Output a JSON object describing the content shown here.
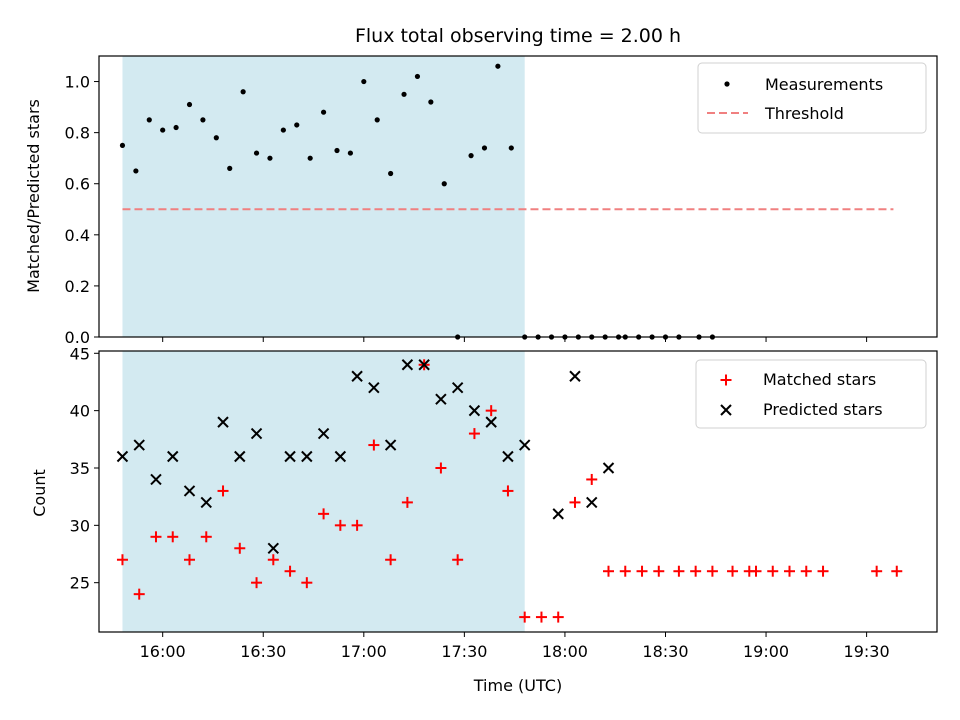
{
  "colors": {
    "shade": "#d3eaf1",
    "threshold": "#f08080",
    "matched": "#ff0000",
    "predicted": "#000000",
    "points": "#000000"
  },
  "chart_data": [
    {
      "type": "scatter",
      "title": "Flux total observing time = 2.00 h",
      "ylabel": "Matched/Predicted stars",
      "ylim": [
        0,
        1.1
      ],
      "yticks": [
        "0.0",
        "0.2",
        "0.4",
        "0.6",
        "0.8",
        "1.0"
      ],
      "shaded_interval": [
        "15:48",
        "17:48"
      ],
      "legend": {
        "placement": "top-right",
        "entries": [
          "Measurements",
          "Threshold"
        ]
      },
      "threshold": {
        "name": "Threshold",
        "value": 0.5,
        "x_range": [
          "15:48",
          "19:38"
        ]
      },
      "series": [
        {
          "name": "Measurements",
          "points": [
            [
              "15:48",
              0.75
            ],
            [
              "15:52",
              0.65
            ],
            [
              "15:56",
              0.85
            ],
            [
              "16:00",
              0.81
            ],
            [
              "16:04",
              0.82
            ],
            [
              "16:08",
              0.91
            ],
            [
              "16:12",
              0.85
            ],
            [
              "16:16",
              0.78
            ],
            [
              "16:20",
              0.66
            ],
            [
              "16:24",
              0.96
            ],
            [
              "16:28",
              0.72
            ],
            [
              "16:32",
              0.7
            ],
            [
              "16:36",
              0.81
            ],
            [
              "16:40",
              0.83
            ],
            [
              "16:44",
              0.7
            ],
            [
              "16:48",
              0.88
            ],
            [
              "16:52",
              0.73
            ],
            [
              "16:56",
              0.72
            ],
            [
              "17:00",
              1.0
            ],
            [
              "17:04",
              0.85
            ],
            [
              "17:08",
              0.64
            ],
            [
              "17:12",
              0.95
            ],
            [
              "17:16",
              1.02
            ],
            [
              "17:20",
              0.92
            ],
            [
              "17:24",
              0.6
            ],
            [
              "17:28",
              0.0
            ],
            [
              "17:32",
              0.71
            ],
            [
              "17:36",
              0.74
            ],
            [
              "17:40",
              1.06
            ],
            [
              "17:44",
              0.74
            ],
            [
              "17:48",
              0.0
            ],
            [
              "17:52",
              0.0
            ],
            [
              "17:56",
              0.0
            ],
            [
              "18:00",
              0.0
            ],
            [
              "18:04",
              0.0
            ],
            [
              "18:08",
              0.0
            ],
            [
              "18:12",
              0.0
            ],
            [
              "18:16",
              0.0
            ],
            [
              "18:18",
              0.0
            ],
            [
              "18:22",
              0.0
            ],
            [
              "18:26",
              0.0
            ],
            [
              "18:30",
              0.0
            ],
            [
              "18:34",
              0.0
            ],
            [
              "18:40",
              0.0
            ],
            [
              "18:44",
              0.0
            ]
          ]
        }
      ]
    },
    {
      "type": "scatter",
      "xlabel": "Time (UTC)",
      "ylabel": "Count",
      "ylim": [
        20.7,
        45.2
      ],
      "yticks": [
        "25",
        "30",
        "35",
        "40",
        "45"
      ],
      "xlim": [
        "15:41",
        "19:51"
      ],
      "xticks": [
        "16:00",
        "16:30",
        "17:00",
        "17:30",
        "18:00",
        "18:30",
        "19:00",
        "19:30"
      ],
      "shaded_interval": [
        "15:48",
        "17:48"
      ],
      "legend": {
        "placement": "top-right",
        "entries": [
          "Matched stars",
          "Predicted stars"
        ]
      },
      "series": [
        {
          "name": "Matched stars",
          "points": [
            [
              "15:48",
              27
            ],
            [
              "15:53",
              24
            ],
            [
              "15:58",
              29
            ],
            [
              "16:03",
              29
            ],
            [
              "16:08",
              27
            ],
            [
              "16:13",
              29
            ],
            [
              "16:18",
              33
            ],
            [
              "16:23",
              28
            ],
            [
              "16:28",
              25
            ],
            [
              "16:33",
              27
            ],
            [
              "16:38",
              26
            ],
            [
              "16:43",
              25
            ],
            [
              "16:48",
              31
            ],
            [
              "16:53",
              30
            ],
            [
              "16:58",
              30
            ],
            [
              "17:03",
              37
            ],
            [
              "17:08",
              27
            ],
            [
              "17:13",
              32
            ],
            [
              "17:18",
              44
            ],
            [
              "17:23",
              35
            ],
            [
              "17:28",
              27
            ],
            [
              "17:33",
              38
            ],
            [
              "17:38",
              40
            ],
            [
              "17:43",
              33
            ],
            [
              "17:48",
              22
            ],
            [
              "17:53",
              22
            ],
            [
              "17:58",
              22
            ],
            [
              "18:03",
              32
            ],
            [
              "18:08",
              34
            ],
            [
              "18:13",
              26
            ],
            [
              "18:18",
              26
            ],
            [
              "18:23",
              26
            ],
            [
              "18:28",
              26
            ],
            [
              "18:34",
              26
            ],
            [
              "18:39",
              26
            ],
            [
              "18:44",
              26
            ],
            [
              "18:50",
              26
            ],
            [
              "18:55",
              26
            ],
            [
              "18:57",
              26
            ],
            [
              "19:02",
              26
            ],
            [
              "19:07",
              26
            ],
            [
              "19:12",
              26
            ],
            [
              "19:17",
              26
            ],
            [
              "19:33",
              26
            ],
            [
              "19:39",
              26
            ]
          ]
        },
        {
          "name": "Predicted stars",
          "points": [
            [
              "15:48",
              36
            ],
            [
              "15:53",
              37
            ],
            [
              "15:58",
              34
            ],
            [
              "16:03",
              36
            ],
            [
              "16:08",
              33
            ],
            [
              "16:13",
              32
            ],
            [
              "16:18",
              39
            ],
            [
              "16:23",
              36
            ],
            [
              "16:28",
              38
            ],
            [
              "16:33",
              28
            ],
            [
              "16:38",
              36
            ],
            [
              "16:43",
              36
            ],
            [
              "16:48",
              38
            ],
            [
              "16:53",
              36
            ],
            [
              "16:58",
              43
            ],
            [
              "17:03",
              42
            ],
            [
              "17:08",
              37
            ],
            [
              "17:13",
              44
            ],
            [
              "17:18",
              44
            ],
            [
              "17:23",
              41
            ],
            [
              "17:28",
              42
            ],
            [
              "17:33",
              40
            ],
            [
              "17:38",
              39
            ],
            [
              "17:43",
              36
            ],
            [
              "17:48",
              37
            ],
            [
              "17:58",
              31
            ],
            [
              "18:03",
              43
            ],
            [
              "18:08",
              32
            ],
            [
              "18:13",
              35
            ]
          ]
        }
      ]
    }
  ]
}
